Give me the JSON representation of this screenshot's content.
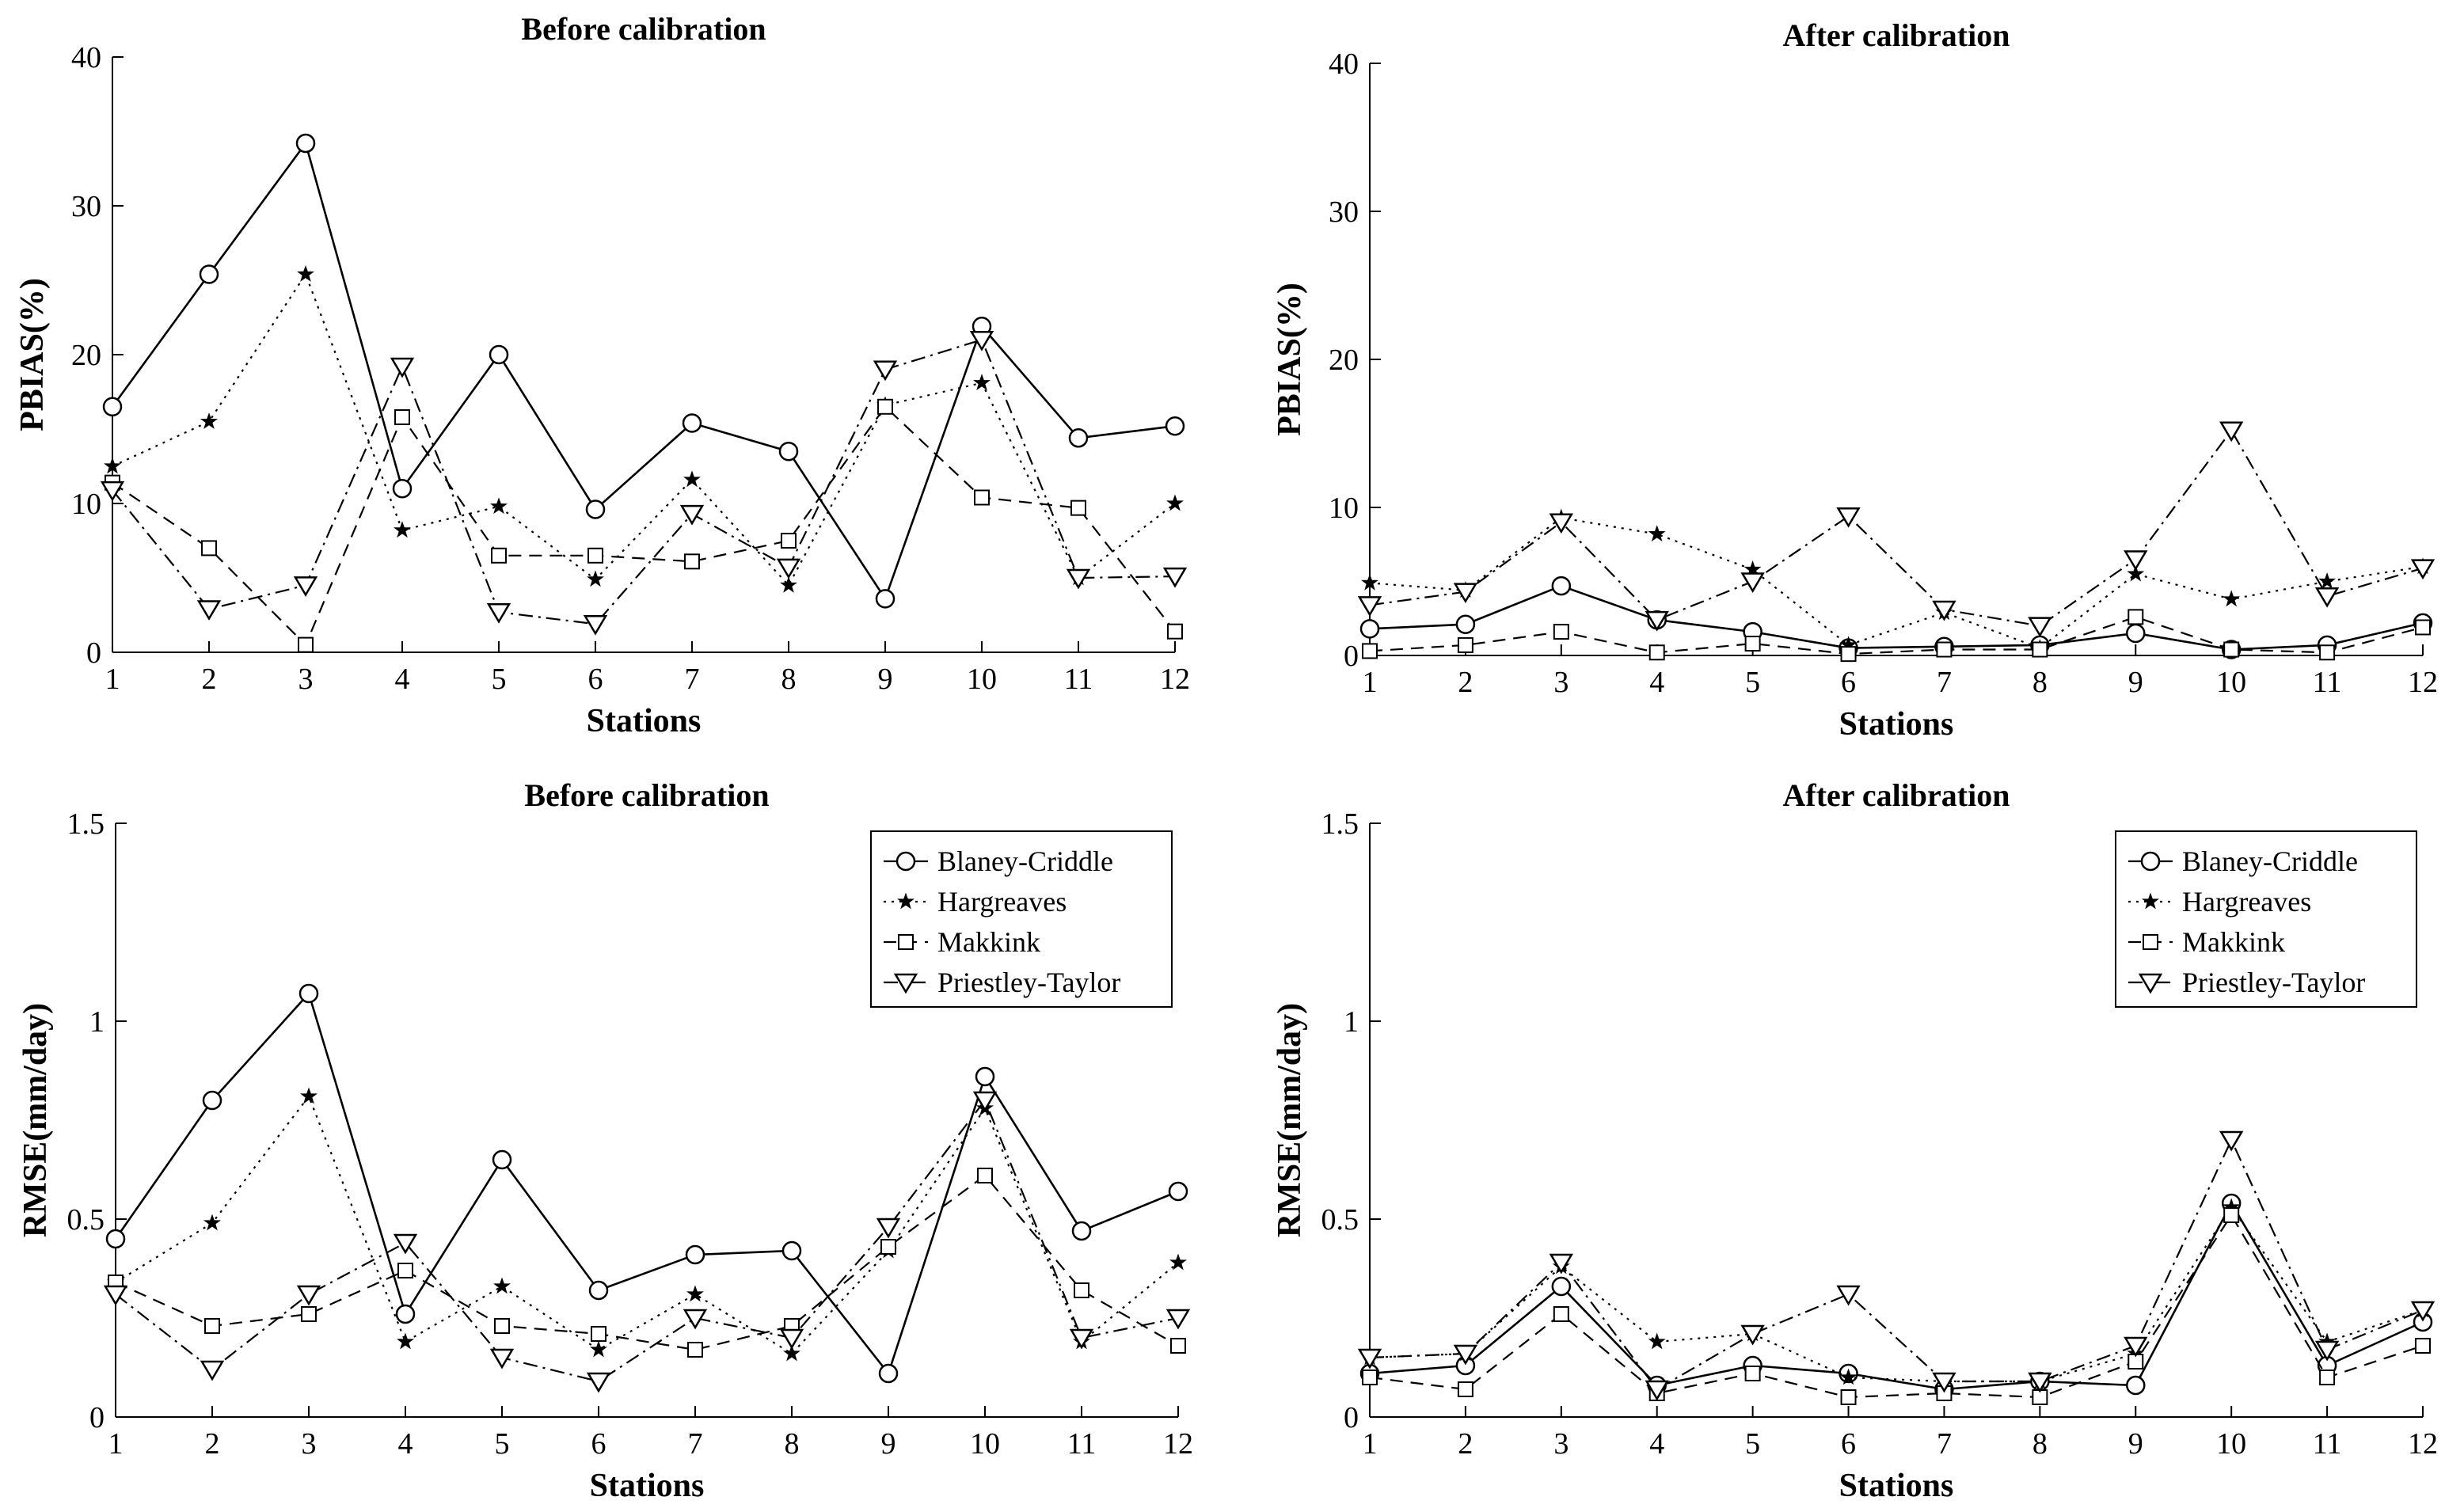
{
  "chart_data": [
    {
      "type": "line",
      "title": "Before calibration",
      "xlabel": "Stations",
      "ylabel": "PBIAS(%)",
      "ylim": [
        0,
        40
      ],
      "yticks": [
        0,
        10,
        20,
        30,
        40
      ],
      "ytick_labels": [
        "0",
        "10",
        "20",
        "30",
        "40"
      ],
      "categories": [
        "1",
        "2",
        "3",
        "4",
        "5",
        "6",
        "7",
        "8",
        "9",
        "10",
        "11",
        "12"
      ],
      "series": [
        {
          "name": "Blaney-Criddle",
          "values": [
            16.5,
            25.4,
            34.2,
            11.0,
            20.0,
            9.6,
            15.4,
            13.5,
            3.6,
            21.9,
            14.4,
            15.2
          ]
        },
        {
          "name": "Hargreaves",
          "values": [
            12.5,
            15.5,
            25.4,
            8.2,
            9.8,
            4.9,
            11.6,
            4.5,
            16.6,
            18.1,
            5.0,
            10.0
          ]
        },
        {
          "name": "Makkink",
          "values": [
            11.4,
            7.0,
            0.5,
            15.8,
            6.5,
            6.5,
            6.1,
            7.5,
            16.5,
            10.4,
            9.7,
            1.4
          ]
        },
        {
          "name": "Priestley-Taylor",
          "values": [
            10.9,
            2.9,
            4.5,
            19.2,
            2.7,
            1.9,
            9.3,
            5.7,
            19.0,
            21.0,
            5.0,
            5.1
          ]
        }
      ]
    },
    {
      "type": "line",
      "title": "After calibration",
      "xlabel": "Stations",
      "ylabel": "PBIAS(%)",
      "ylim": [
        0,
        40
      ],
      "yticks": [
        0,
        10,
        20,
        30,
        40
      ],
      "ytick_labels": [
        "0",
        "10",
        "20",
        "30",
        "40"
      ],
      "categories": [
        "1",
        "2",
        "3",
        "4",
        "5",
        "6",
        "7",
        "8",
        "9",
        "10",
        "11",
        "12"
      ],
      "series": [
        {
          "name": "Blaney-Criddle",
          "values": [
            1.8,
            2.1,
            4.7,
            2.4,
            1.6,
            0.5,
            0.6,
            0.7,
            1.5,
            0.4,
            0.7,
            2.2
          ]
        },
        {
          "name": "Hargreaves",
          "values": [
            4.9,
            4.4,
            9.3,
            8.2,
            5.8,
            0.7,
            2.9,
            0.5,
            5.5,
            3.8,
            5.0,
            6.0
          ]
        },
        {
          "name": "Makkink",
          "values": [
            0.3,
            0.7,
            1.6,
            0.2,
            0.8,
            0.1,
            0.4,
            0.4,
            2.6,
            0.4,
            0.2,
            1.9
          ]
        },
        {
          "name": "Priestley-Taylor",
          "values": [
            3.4,
            4.3,
            9.0,
            2.4,
            5.0,
            9.4,
            3.1,
            2.0,
            6.5,
            15.2,
            4.0,
            5.9
          ]
        }
      ]
    },
    {
      "type": "line",
      "title": "Before calibration",
      "xlabel": "Stations",
      "ylabel": "RMSE(mm/day)",
      "ylim": [
        0,
        1.5
      ],
      "yticks": [
        0,
        0.5,
        1,
        1.5
      ],
      "ytick_labels": [
        "0",
        "0.5",
        "1",
        "1.5"
      ],
      "categories": [
        "1",
        "2",
        "3",
        "4",
        "5",
        "6",
        "7",
        "8",
        "9",
        "10",
        "11",
        "12"
      ],
      "legend": "top-right",
      "series": [
        {
          "name": "Blaney-Criddle",
          "values": [
            0.45,
            0.8,
            1.07,
            0.26,
            0.65,
            0.32,
            0.41,
            0.42,
            0.11,
            0.86,
            0.47,
            0.57
          ]
        },
        {
          "name": "Hargreaves",
          "values": [
            0.34,
            0.49,
            0.81,
            0.19,
            0.33,
            0.17,
            0.31,
            0.16,
            0.42,
            0.78,
            0.19,
            0.39
          ]
        },
        {
          "name": "Makkink",
          "values": [
            0.34,
            0.23,
            0.26,
            0.37,
            0.23,
            0.21,
            0.17,
            0.23,
            0.43,
            0.61,
            0.32,
            0.18
          ]
        },
        {
          "name": "Priestley-Taylor",
          "values": [
            0.31,
            0.12,
            0.31,
            0.44,
            0.15,
            0.09,
            0.25,
            0.2,
            0.48,
            0.8,
            0.2,
            0.25
          ]
        }
      ]
    },
    {
      "type": "line",
      "title": "After calibration",
      "xlabel": "Stations",
      "ylabel": "RMSE(mm/day)",
      "ylim": [
        0,
        1.5
      ],
      "yticks": [
        0,
        0.5,
        1,
        1.5
      ],
      "ytick_labels": [
        "0",
        "0.5",
        "1",
        "1.5"
      ],
      "categories": [
        "1",
        "2",
        "3",
        "4",
        "5",
        "6",
        "7",
        "8",
        "9",
        "10",
        "11",
        "12"
      ],
      "legend": "top-right",
      "series": [
        {
          "name": "Blaney-Criddle",
          "values": [
            0.11,
            0.13,
            0.33,
            0.08,
            0.13,
            0.11,
            0.07,
            0.09,
            0.08,
            0.54,
            0.13,
            0.24
          ]
        },
        {
          "name": "Hargreaves",
          "values": [
            0.15,
            0.16,
            0.38,
            0.19,
            0.21,
            0.1,
            0.09,
            0.09,
            0.16,
            0.53,
            0.19,
            0.27
          ]
        },
        {
          "name": "Makkink",
          "values": [
            0.1,
            0.07,
            0.26,
            0.06,
            0.11,
            0.05,
            0.06,
            0.05,
            0.14,
            0.51,
            0.1,
            0.18
          ]
        },
        {
          "name": "Priestley-Taylor",
          "values": [
            0.15,
            0.16,
            0.39,
            0.07,
            0.21,
            0.31,
            0.09,
            0.09,
            0.18,
            0.7,
            0.17,
            0.27
          ]
        }
      ]
    }
  ]
}
